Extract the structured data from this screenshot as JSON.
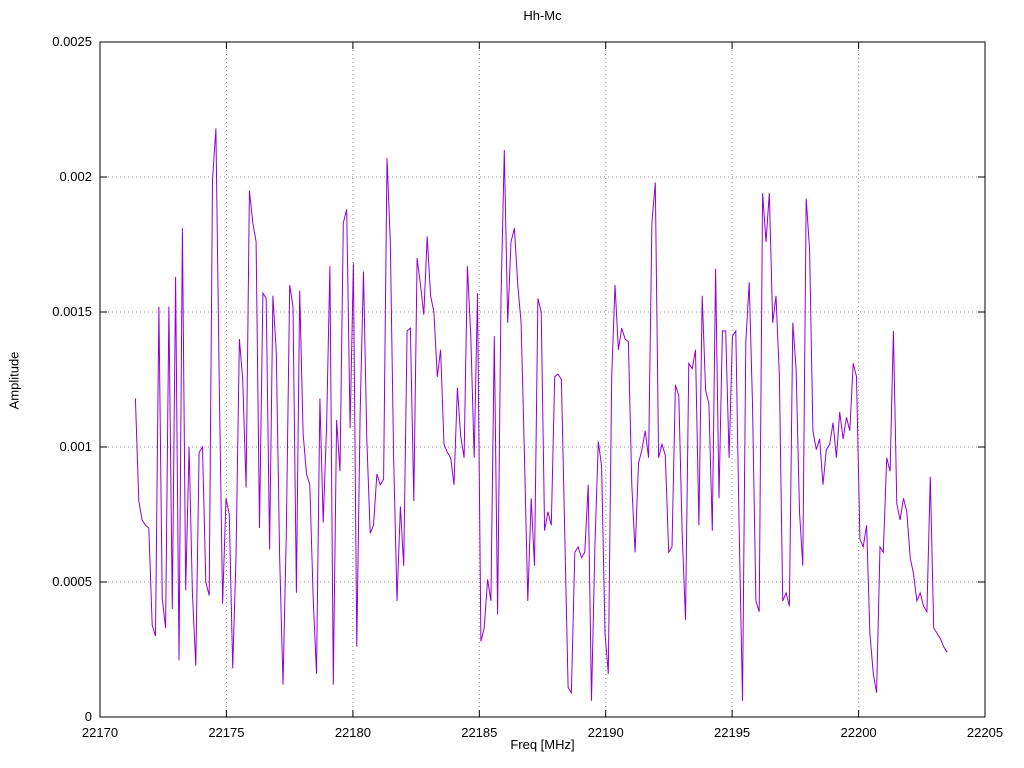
{
  "chart_data": {
    "type": "line",
    "title": "Hh-Mc",
    "xlabel": "Freq [MHz]",
    "ylabel": "Amplitude",
    "xlim": [
      22170,
      22205
    ],
    "ylim": [
      0,
      0.0025
    ],
    "grid": true,
    "legend_position": "none",
    "line_color": "#9400d3",
    "grid_color": "#909090",
    "x_ticks": [
      22170,
      22175,
      22180,
      22185,
      22190,
      22195,
      22200,
      22205
    ],
    "x_tick_labels": [
      "22170",
      "22175",
      "22180",
      "22185",
      "22190",
      "22195",
      "22200",
      "22205"
    ],
    "y_ticks": [
      0,
      0.0005,
      0.001,
      0.0015,
      0.002,
      0.0025
    ],
    "y_tick_labels": [
      "0",
      "0.0005",
      "0.001",
      "0.0015",
      "0.002",
      "0.0025"
    ],
    "series": [
      {
        "name": "Hh-Mc",
        "x_start": 22171.4,
        "x_end": 22203.5,
        "values": [
          0.00118,
          0.0008,
          0.00073,
          0.00071,
          0.0007,
          0.00034,
          0.0003,
          0.00152,
          0.00044,
          0.00033,
          0.00152,
          0.0004,
          0.00163,
          0.00021,
          0.00181,
          0.00047,
          0.001,
          0.00046,
          0.00019,
          0.00098,
          0.001,
          0.0005,
          0.00045,
          0.00199,
          0.00218,
          0.00122,
          0.00042,
          0.00081,
          0.00075,
          0.00018,
          0.00059,
          0.0014,
          0.00125,
          0.00085,
          0.00195,
          0.00183,
          0.00176,
          0.0007,
          0.00157,
          0.00155,
          0.00062,
          0.00156,
          0.00135,
          0.0006,
          0.00012,
          0.00068,
          0.0016,
          0.00152,
          0.00046,
          0.00158,
          0.00105,
          0.0009,
          0.00086,
          0.00044,
          0.00016,
          0.00118,
          0.00072,
          0.00108,
          0.00167,
          0.00012,
          0.0011,
          0.00091,
          0.00183,
          0.00188,
          0.00107,
          0.00168,
          0.00026,
          0.00112,
          0.00165,
          0.00103,
          0.00068,
          0.00071,
          0.0009,
          0.00086,
          0.00088,
          0.00207,
          0.00176,
          0.00095,
          0.00043,
          0.00078,
          0.00056,
          0.00143,
          0.00144,
          0.0008,
          0.0017,
          0.0016,
          0.00149,
          0.00178,
          0.00156,
          0.0015,
          0.00126,
          0.00136,
          0.00101,
          0.00098,
          0.00096,
          0.00086,
          0.00122,
          0.00104,
          0.00096,
          0.00167,
          0.00141,
          0.00096,
          0.00157,
          0.00028,
          0.00033,
          0.00051,
          0.00043,
          0.00141,
          0.00038,
          0.00155,
          0.0021,
          0.00146,
          0.00176,
          0.00181,
          0.0016,
          0.00146,
          0.00096,
          0.00043,
          0.00081,
          0.00056,
          0.00155,
          0.0015,
          0.00069,
          0.00076,
          0.00071,
          0.00126,
          0.00127,
          0.00125,
          0.00069,
          0.00011,
          9e-05,
          0.00061,
          0.00063,
          0.00059,
          0.00061,
          0.00086,
          6e-05,
          0.00063,
          0.00102,
          0.00093,
          0.00031,
          0.00016,
          0.00126,
          0.0016,
          0.00136,
          0.00144,
          0.0014,
          0.00139,
          0.00086,
          0.00061,
          0.00094,
          0.00099,
          0.00106,
          0.00096,
          0.00183,
          0.00198,
          0.00096,
          0.00101,
          0.00097,
          0.00061,
          0.00063,
          0.00123,
          0.00119,
          0.00069,
          0.00036,
          0.00131,
          0.00129,
          0.00136,
          0.00071,
          0.00156,
          0.00121,
          0.00116,
          0.00069,
          0.00166,
          0.00081,
          0.00143,
          0.00143,
          0.00096,
          0.00141,
          0.00143,
          0.00071,
          6e-05,
          0.00139,
          0.00161,
          0.00116,
          0.00043,
          0.00039,
          0.00194,
          0.00176,
          0.00194,
          0.00146,
          0.00156,
          0.00126,
          0.00043,
          0.00046,
          0.00041,
          0.00146,
          0.00129,
          0.00076,
          0.00056,
          0.00192,
          0.00173,
          0.00106,
          0.00099,
          0.00103,
          0.00086,
          0.00099,
          0.00101,
          0.00109,
          0.00096,
          0.00113,
          0.00103,
          0.00111,
          0.00106,
          0.00131,
          0.00126,
          0.00066,
          0.00063,
          0.00071,
          0.00031,
          0.00016,
          9e-05,
          0.00063,
          0.00061,
          0.00096,
          0.00091,
          0.00143,
          0.00079,
          0.00073,
          0.00081,
          0.00076,
          0.00059,
          0.00053,
          0.00043,
          0.00046,
          0.00041,
          0.00039,
          0.00089,
          0.00033,
          0.00031,
          0.00029,
          0.00026,
          0.00024
        ]
      }
    ]
  }
}
